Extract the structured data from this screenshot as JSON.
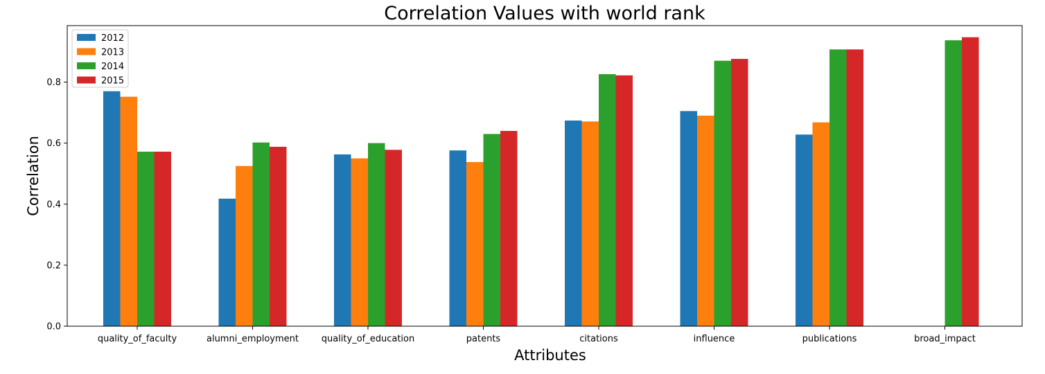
{
  "chart_data": {
    "type": "bar",
    "title": "Correlation Values with world rank",
    "xlabel": "Attributes",
    "ylabel": "Correlation",
    "ylim": [
      0,
      0.985
    ],
    "yticks": [
      0.0,
      0.2,
      0.4,
      0.6,
      0.8
    ],
    "ytick_labels": [
      "0.0",
      "0.2",
      "0.4",
      "0.6",
      "0.8"
    ],
    "grid": false,
    "legend_position": "top-left",
    "categories": [
      "quality_of_faculty",
      "alumni_employment",
      "quality_of_education",
      "patents",
      "citations",
      "influence",
      "publications",
      "broad_impact"
    ],
    "series": [
      {
        "name": "2012",
        "color": "#1f77b4",
        "values": [
          0.77,
          0.418,
          0.563,
          0.576,
          0.674,
          0.705,
          0.628,
          null
        ]
      },
      {
        "name": "2013",
        "color": "#ff7f0e",
        "values": [
          0.752,
          0.525,
          0.55,
          0.538,
          0.671,
          0.69,
          0.668,
          null
        ]
      },
      {
        "name": "2014",
        "color": "#2ca02c",
        "values": [
          0.572,
          0.602,
          0.6,
          0.63,
          0.826,
          0.87,
          0.907,
          0.937
        ]
      },
      {
        "name": "2015",
        "color": "#d62728",
        "values": [
          0.572,
          0.588,
          0.578,
          0.64,
          0.822,
          0.876,
          0.907,
          0.947
        ]
      }
    ]
  }
}
